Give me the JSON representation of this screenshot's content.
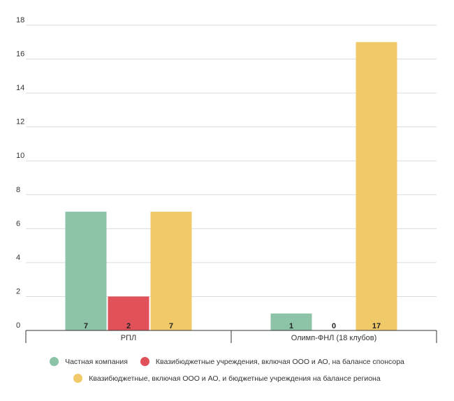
{
  "chart_data": {
    "type": "bar",
    "categories": [
      "РПЛ",
      "Олимп-ФНЛ (18 клубов)"
    ],
    "series": [
      {
        "name": "Частная компания",
        "values": [
          7,
          1
        ],
        "color": "#8dc3a7"
      },
      {
        "name": "Квазибюджетные учреждения, включая ООО и АО, на балансе спонсора",
        "values": [
          2,
          0
        ],
        "color": "#e0515a"
      },
      {
        "name": "Квазибюджетные, включая ООО и АО, и бюджетные учреждения на балансе региона",
        "values": [
          7,
          17
        ],
        "color": "#f0ca68"
      }
    ],
    "ylim": [
      0,
      18
    ],
    "yticks": [
      0,
      2,
      4,
      6,
      8,
      10,
      12,
      14,
      16,
      18
    ],
    "grid": true,
    "legend_position": "bottom"
  }
}
